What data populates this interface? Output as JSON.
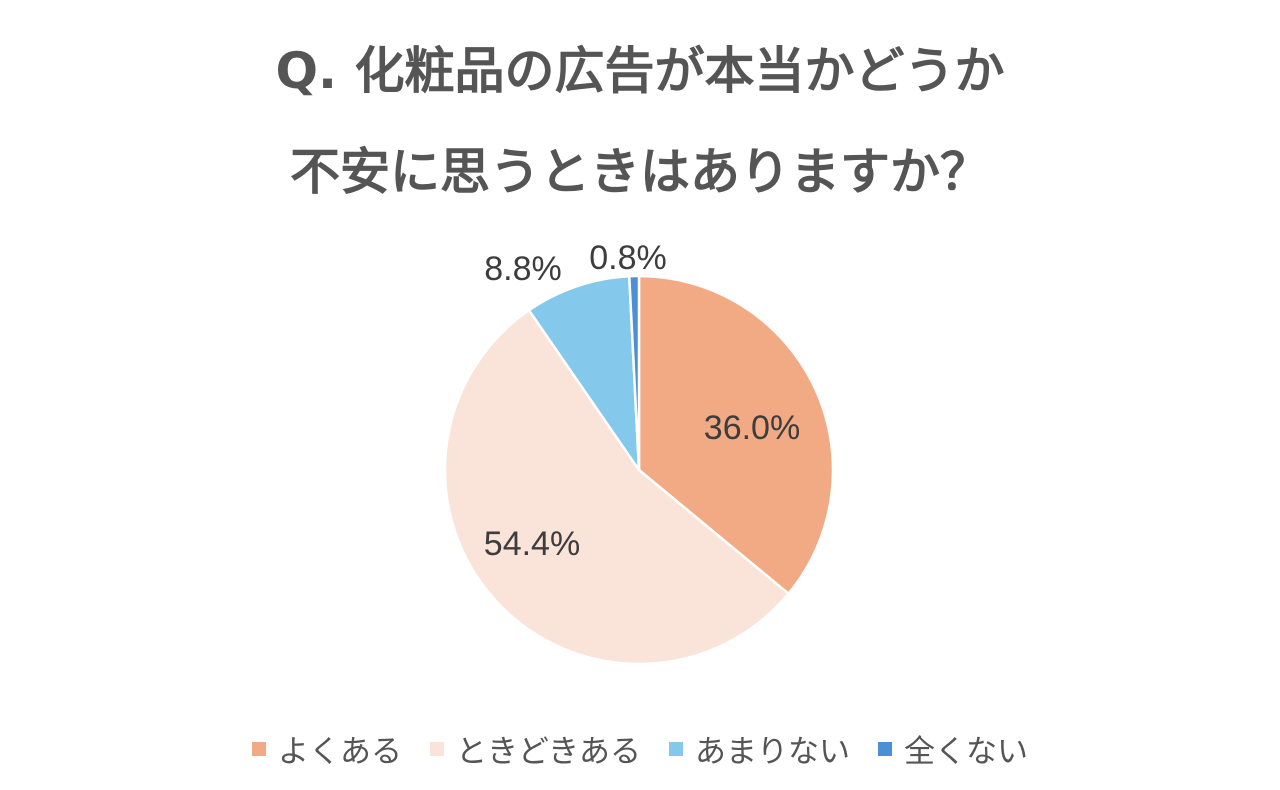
{
  "title_line1": "Q. 化粧品の広告が本当かどうか",
  "title_line2": "不安に思うときはありますか？",
  "chart_data": {
    "type": "pie",
    "categories": [
      "よくある",
      "ときどきある",
      "あまりない",
      "全くない"
    ],
    "values": [
      36.0,
      54.4,
      8.8,
      0.8
    ],
    "labels": [
      "36.0%",
      "54.4%",
      "8.8%",
      "0.8%"
    ],
    "colors": [
      "#F2AA84",
      "#FAE3D8",
      "#84C9EB",
      "#4B8FD6"
    ],
    "legend_position": "bottom"
  }
}
